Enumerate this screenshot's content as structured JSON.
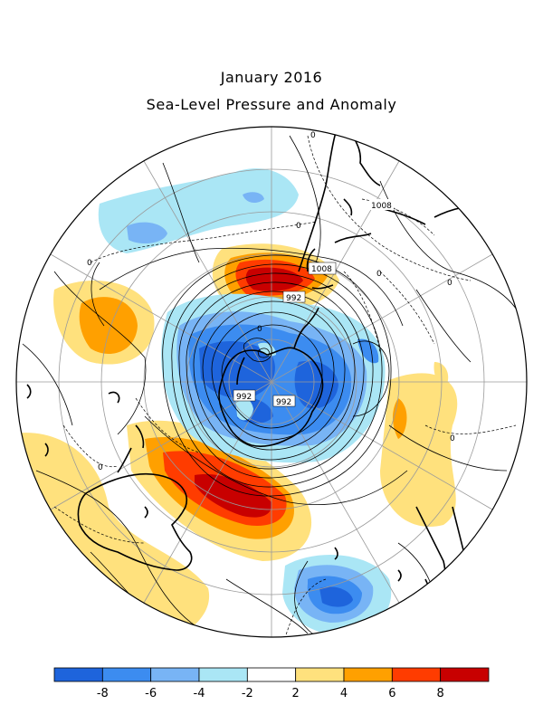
{
  "title": "January 2016",
  "subtitle": "Sea-Level Pressure and Anomaly",
  "colorbar": {
    "bins": [
      {
        "color": "#1e64dc"
      },
      {
        "color": "#3c8cf0"
      },
      {
        "color": "#78b4f5"
      },
      {
        "color": "#aae6f5"
      },
      {
        "color": "#ffffff"
      },
      {
        "color": "#ffe17d"
      },
      {
        "color": "#ffa000"
      },
      {
        "color": "#ff3c00"
      },
      {
        "color": "#c80000"
      }
    ],
    "ticks": [
      "-8",
      "-6",
      "-4",
      "-2",
      "2",
      "4",
      "6",
      "8"
    ]
  },
  "contour_labels": [
    "0",
    "0",
    "0",
    "0",
    "0",
    "0",
    "0",
    "0",
    "1008",
    "1008",
    "992",
    "992",
    "992"
  ]
}
